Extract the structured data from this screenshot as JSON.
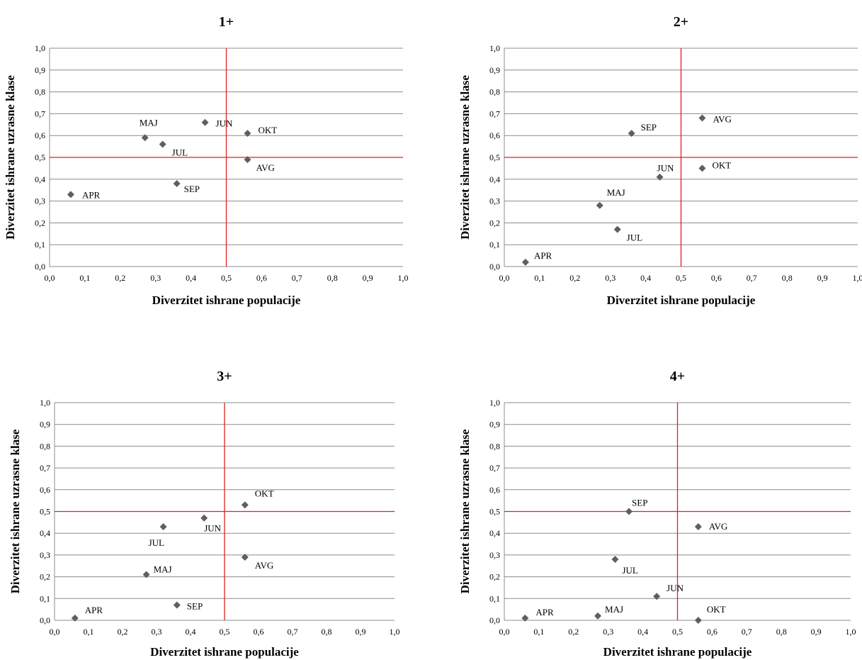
{
  "chart_data": [
    {
      "type": "scatter",
      "title": "1+",
      "xlabel": "Diverzitet ishrane populacije",
      "ylabel": "Diverzitet ishrane uzrasne klase",
      "xlim": [
        0,
        1
      ],
      "ylim": [
        0,
        1
      ],
      "ticks": [
        "0,0",
        "0,1",
        "0,2",
        "0,3",
        "0,4",
        "0,5",
        "0,6",
        "0,7",
        "0,8",
        "0,9",
        "1,0"
      ],
      "grid": true,
      "reference_lines": {
        "x": 0.5,
        "y": 0.5
      },
      "points": [
        {
          "label": "APR",
          "x": 0.06,
          "y": 0.33
        },
        {
          "label": "MAJ",
          "x": 0.27,
          "y": 0.59
        },
        {
          "label": "JUN",
          "x": 0.44,
          "y": 0.66
        },
        {
          "label": "JUL",
          "x": 0.32,
          "y": 0.56
        },
        {
          "label": "AVG",
          "x": 0.56,
          "y": 0.49
        },
        {
          "label": "SEP",
          "x": 0.36,
          "y": 0.38
        },
        {
          "label": "OKT",
          "x": 0.56,
          "y": 0.61
        }
      ]
    },
    {
      "type": "scatter",
      "title": "2+",
      "xlabel": "Diverzitet ishrane populacije",
      "ylabel": "Diverzitet ishrane uzrasne klase",
      "xlim": [
        0,
        1
      ],
      "ylim": [
        0,
        1
      ],
      "ticks": [
        "0,0",
        "0,1",
        "0,2",
        "0,3",
        "0,4",
        "0,5",
        "0,6",
        "0,7",
        "0,8",
        "0,9",
        "1,0"
      ],
      "grid": true,
      "reference_lines": {
        "x": 0.5,
        "y": 0.5
      },
      "points": [
        {
          "label": "APR",
          "x": 0.06,
          "y": 0.02
        },
        {
          "label": "MAJ",
          "x": 0.27,
          "y": 0.28
        },
        {
          "label": "JUN",
          "x": 0.44,
          "y": 0.41
        },
        {
          "label": "JUL",
          "x": 0.32,
          "y": 0.17
        },
        {
          "label": "AVG",
          "x": 0.56,
          "y": 0.68
        },
        {
          "label": "SEP",
          "x": 0.36,
          "y": 0.61
        },
        {
          "label": "OKT",
          "x": 0.56,
          "y": 0.45
        }
      ]
    },
    {
      "type": "scatter",
      "title": "3+",
      "xlabel": "Diverzitet ishrane populacije",
      "ylabel": "Diverzitet ishrane uzrasne klase",
      "xlim": [
        0,
        1
      ],
      "ylim": [
        0,
        1
      ],
      "ticks": [
        "0,0",
        "0,1",
        "0,2",
        "0,3",
        "0,4",
        "0,5",
        "0,6",
        "0,7",
        "0,8",
        "0,9",
        "1,0"
      ],
      "grid": true,
      "reference_lines": {
        "x": 0.5,
        "y": 0.5
      },
      "points": [
        {
          "label": "APR",
          "x": 0.06,
          "y": 0.01
        },
        {
          "label": "MAJ",
          "x": 0.27,
          "y": 0.21
        },
        {
          "label": "JUN",
          "x": 0.44,
          "y": 0.47
        },
        {
          "label": "JUL",
          "x": 0.32,
          "y": 0.43
        },
        {
          "label": "AVG",
          "x": 0.56,
          "y": 0.29
        },
        {
          "label": "SEP",
          "x": 0.36,
          "y": 0.07
        },
        {
          "label": "OKT",
          "x": 0.56,
          "y": 0.53
        }
      ]
    },
    {
      "type": "scatter",
      "title": "4+",
      "xlabel": "Diverzitet ishrane populacije",
      "ylabel": "Diverzitet ishrane uzrasne klase",
      "xlim": [
        0,
        1
      ],
      "ylim": [
        0,
        1
      ],
      "ticks": [
        "0,0",
        "0,1",
        "0,2",
        "0,3",
        "0,4",
        "0,5",
        "0,6",
        "0,7",
        "0,8",
        "0,9",
        "1,0"
      ],
      "grid": true,
      "reference_lines": {
        "x": 0.5,
        "y": 0.5
      },
      "points": [
        {
          "label": "APR",
          "x": 0.06,
          "y": 0.01
        },
        {
          "label": "MAJ",
          "x": 0.27,
          "y": 0.02
        },
        {
          "label": "JUN",
          "x": 0.44,
          "y": 0.11
        },
        {
          "label": "JUL",
          "x": 0.32,
          "y": 0.28
        },
        {
          "label": "AVG",
          "x": 0.56,
          "y": 0.43
        },
        {
          "label": "SEP",
          "x": 0.36,
          "y": 0.5
        },
        {
          "label": "OKT",
          "x": 0.56,
          "y": 0.0
        }
      ]
    }
  ]
}
